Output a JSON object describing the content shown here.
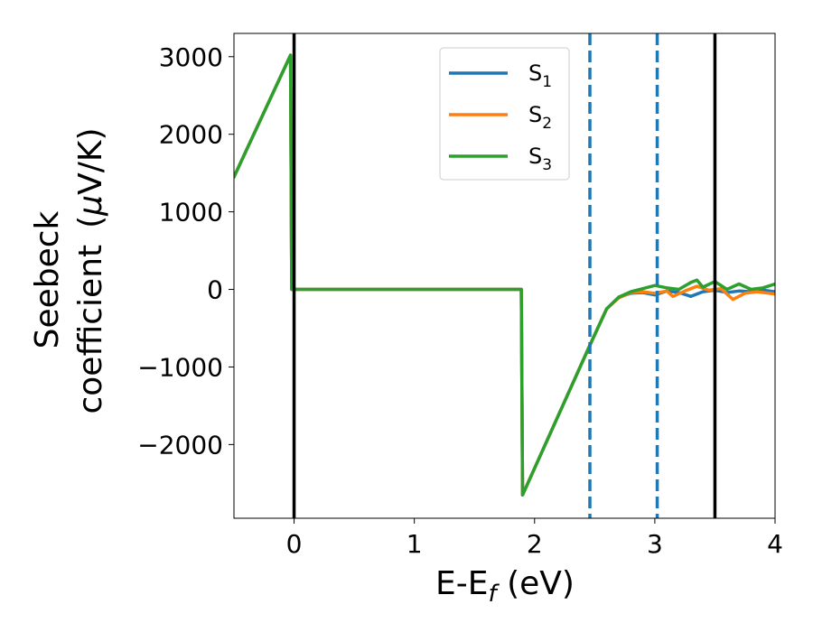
{
  "chart_data": {
    "type": "line",
    "xlabel": "E-E",
    "xlabel_sub": "f",
    "xlabel_unit": " (eV)",
    "ylabel_line1": "Seebeck",
    "ylabel_line2": "coefficient",
    "ylabel_unit_prefix": "(",
    "ylabel_unit_greek": "μ",
    "ylabel_unit_suffix": "V/K)",
    "xlim": [
      -0.5,
      4.0
    ],
    "ylim": [
      -2950,
      3300
    ],
    "x_ticks": [
      0,
      1,
      2,
      3,
      4
    ],
    "y_ticks": [
      -2000,
      -1000,
      0,
      1000,
      2000,
      3000
    ],
    "x_tick_labels": [
      "0",
      "1",
      "2",
      "3",
      "4"
    ],
    "y_tick_labels": [
      "−2000",
      "−1000",
      "0",
      "1000",
      "2000",
      "3000"
    ],
    "grid": false,
    "legend_position": "top-center",
    "vlines_solid": [
      0.0,
      3.5
    ],
    "vlines_dashed": [
      2.46,
      3.02
    ],
    "vline_solid_color": "#000000",
    "vline_dashed_color": "#1f77b4",
    "series": [
      {
        "name": "S",
        "sub": "1",
        "color": "#1f77b4",
        "x": [
          -0.5,
          -0.03,
          -0.02,
          1.89,
          1.9,
          2.46,
          2.6,
          2.7,
          2.8,
          2.9,
          3.0,
          3.1,
          3.2,
          3.3,
          3.4,
          3.5,
          3.6,
          3.7,
          3.8,
          3.9,
          4.0
        ],
        "y": [
          1450,
          3020,
          0,
          0,
          -2650,
          -720,
          -250,
          -100,
          -50,
          -40,
          -70,
          -20,
          -40,
          -90,
          -30,
          -10,
          -40,
          -20,
          -30,
          -10,
          -30
        ]
      },
      {
        "name": "S",
        "sub": "2",
        "color": "#ff7f0e",
        "x": [
          -0.5,
          -0.03,
          -0.02,
          1.89,
          1.9,
          2.46,
          2.6,
          2.7,
          2.8,
          2.9,
          3.0,
          3.1,
          3.15,
          3.25,
          3.35,
          3.45,
          3.55,
          3.65,
          3.75,
          3.85,
          4.0
        ],
        "y": [
          1450,
          3020,
          0,
          0,
          -2650,
          -720,
          -250,
          -110,
          -40,
          -30,
          -50,
          -20,
          -90,
          -20,
          40,
          -10,
          10,
          -130,
          -50,
          -30,
          -60
        ]
      },
      {
        "name": "S",
        "sub": "3",
        "color": "#2ca02c",
        "x": [
          -0.5,
          -0.03,
          -0.02,
          1.89,
          1.9,
          2.46,
          2.6,
          2.7,
          2.8,
          2.9,
          3.0,
          3.1,
          3.2,
          3.3,
          3.35,
          3.4,
          3.5,
          3.6,
          3.7,
          3.8,
          3.9,
          4.0
        ],
        "y": [
          1450,
          3020,
          0,
          0,
          -2650,
          -720,
          -250,
          -100,
          -30,
          10,
          50,
          20,
          0,
          90,
          120,
          30,
          100,
          0,
          70,
          0,
          20,
          70
        ]
      }
    ]
  }
}
